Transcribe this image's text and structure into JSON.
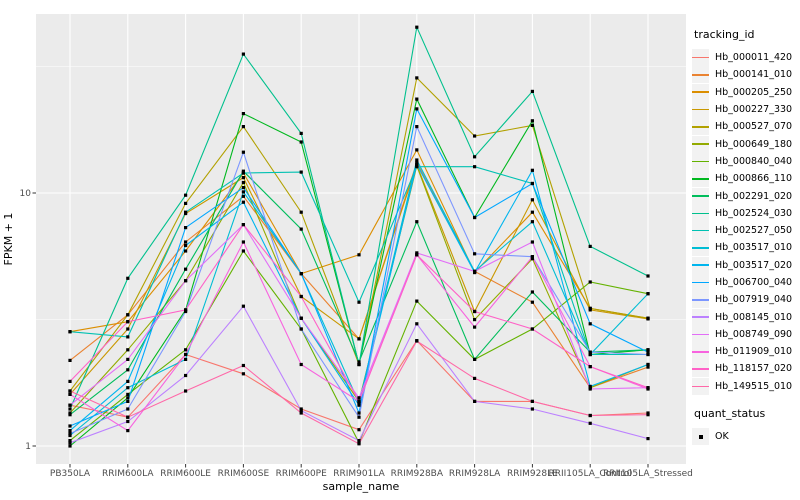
{
  "figure": {
    "background": "#FFFFFF",
    "panel_bg": "#EBEBEB",
    "grid_color": "#FFFFFF",
    "tick_color": "#333333",
    "tick_label_color": "#4D4D4D",
    "axis_title_color": "#000000",
    "point_color": "#000000"
  },
  "axes": {
    "x_title": "sample_name",
    "y_title": "FPKM + 1",
    "y_tick_labels": [
      "10",
      "1"
    ]
  },
  "legend": {
    "tracking_title": "tracking_id",
    "quant_title": "quant_status",
    "quant_items": [
      {
        "label": "OK",
        "marker": "filled-square",
        "color": "#000000"
      }
    ]
  },
  "chart_data": {
    "type": "line",
    "title": "",
    "xlabel": "sample_name",
    "ylabel": "FPKM + 1",
    "yscale": "log10",
    "ylim": [
      0.85,
      51
    ],
    "yticks": [
      1,
      10
    ],
    "y_minor_gridlines": [
      3.162,
      31.62
    ],
    "grid": true,
    "legend_position": "right",
    "legend_title": "tracking_id",
    "point_marker": "filled-black-square (quant_status = OK)",
    "categories": [
      "PB350LA",
      "RRIM600LA",
      "RRIM600LE",
      "RRIM600SE",
      "RRIM600PE",
      "RRIM901LA",
      "RRIM928BA",
      "RRIM928LA",
      "RRIM928LE",
      "RRII105LA_Control",
      "RRII105LA_Stressed"
    ],
    "series": [
      {
        "name": "Hb_000011_420",
        "color": "#F8766D",
        "values": [
          1.45,
          1.3,
          2.3,
          1.93,
          1.4,
          1.16,
          2.61,
          1.5,
          1.5,
          1.32,
          1.35
        ]
      },
      {
        "name": "Hb_000141_010",
        "color": "#EA8331",
        "values": [
          2.18,
          3.3,
          6.4,
          9.7,
          4.8,
          2.65,
          13.2,
          4.9,
          3.7,
          1.7,
          2.05
        ]
      },
      {
        "name": "Hb_000205_250",
        "color": "#DB8E00",
        "values": [
          2.83,
          3.1,
          5.9,
          12.0,
          4.8,
          5.7,
          14.8,
          4.85,
          8.4,
          3.5,
          3.2
        ]
      },
      {
        "name": "Hb_000227_330",
        "color": "#C99800",
        "values": [
          1.6,
          2.9,
          8.3,
          11.5,
          3.9,
          2.65,
          12.9,
          3.4,
          9.4,
          3.45,
          3.18
        ]
      },
      {
        "name": "Hb_000527_070",
        "color": "#B2A100",
        "values": [
          1.65,
          3.3,
          9.1,
          18.3,
          8.4,
          2.1,
          28.5,
          16.8,
          18.5,
          3.5,
          3.2
        ]
      },
      {
        "name": "Hb_000649_180",
        "color": "#93AA00",
        "values": [
          1.35,
          2.4,
          4.5,
          11.0,
          3.2,
          1.5,
          12.8,
          3.16,
          5.5,
          1.7,
          2.1
        ]
      },
      {
        "name": "Hb_000840_040",
        "color": "#64B200",
        "values": [
          1.05,
          1.6,
          2.4,
          5.9,
          2.9,
          1.03,
          3.74,
          2.2,
          2.9,
          4.45,
          4.0
        ]
      },
      {
        "name": "Hb_000866_110",
        "color": "#00B81F",
        "values": [
          1.0,
          1.55,
          3.45,
          20.6,
          15.9,
          2.1,
          23.5,
          8.0,
          19.3,
          2.3,
          2.4
        ]
      },
      {
        "name": "Hb_002291_020",
        "color": "#00BD5C",
        "values": [
          1.33,
          2.0,
          5.0,
          12.2,
          7.2,
          2.15,
          7.7,
          2.2,
          4.06,
          2.35,
          2.4
        ]
      },
      {
        "name": "Hb_002524_030",
        "color": "#00C08D",
        "values": [
          1.4,
          4.6,
          9.8,
          35.4,
          17.2,
          2.1,
          45.2,
          13.9,
          25.2,
          6.15,
          4.7
        ]
      },
      {
        "name": "Hb_002527_050",
        "color": "#00C1B2",
        "values": [
          2.83,
          2.7,
          8.4,
          12.0,
          12.1,
          3.7,
          12.7,
          12.7,
          10.9,
          2.3,
          2.3
        ]
      },
      {
        "name": "Hb_003517_010",
        "color": "#00BDD4",
        "values": [
          1.1,
          1.7,
          2.2,
          10.1,
          4.8,
          1.48,
          13.5,
          4.9,
          7.7,
          2.3,
          4.0
        ]
      },
      {
        "name": "Hb_003517_020",
        "color": "#00B5EE",
        "values": [
          1.15,
          1.8,
          6.2,
          9.2,
          3.2,
          1.45,
          13.0,
          4.85,
          12.3,
          1.72,
          2.1
        ]
      },
      {
        "name": "Hb_006700_040",
        "color": "#00A7FF",
        "values": [
          1.2,
          1.5,
          7.3,
          10.5,
          4.8,
          1.35,
          21.5,
          8.0,
          10.9,
          3.04,
          2.35
        ]
      },
      {
        "name": "Hb_007919_040",
        "color": "#7C96FF",
        "values": [
          1.12,
          1.4,
          3.4,
          14.5,
          2.9,
          1.3,
          18.3,
          5.75,
          5.6,
          2.35,
          2.3
        ]
      },
      {
        "name": "Hb_008145_010",
        "color": "#BC81FF",
        "values": [
          1.03,
          1.25,
          1.9,
          3.57,
          1.38,
          1.05,
          3.04,
          1.5,
          1.4,
          1.23,
          1.07
        ]
      },
      {
        "name": "Hb_008749_090",
        "color": "#E26EF7",
        "values": [
          1.45,
          2.2,
          4.5,
          7.5,
          3.2,
          1.55,
          5.8,
          4.9,
          6.4,
          1.68,
          1.7
        ]
      },
      {
        "name": "Hb_011909_010",
        "color": "#F863DF",
        "values": [
          1.6,
          1.15,
          2.3,
          6.4,
          2.1,
          1.5,
          5.7,
          2.95,
          5.6,
          2.06,
          1.68
        ]
      },
      {
        "name": "Hb_118157_020",
        "color": "#FF61C7",
        "values": [
          1.8,
          3.1,
          3.45,
          7.5,
          3.9,
          1.5,
          5.7,
          3.4,
          2.9,
          2.06,
          1.7
        ]
      },
      {
        "name": "Hb_149515_010",
        "color": "#FF68A8",
        "values": [
          1.65,
          1.3,
          1.65,
          2.08,
          1.35,
          1.02,
          2.6,
          1.85,
          1.5,
          1.32,
          1.33
        ]
      }
    ]
  }
}
